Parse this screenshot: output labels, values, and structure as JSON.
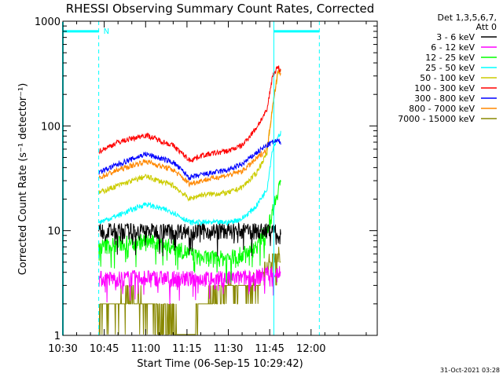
{
  "chart_data": {
    "type": "line",
    "title": "RHESSI Observing Summary Count Rates, Corrected",
    "xlabel": "Start Time (06-Sep-15 10:29:42)",
    "ylabel": "Corrected Count Rate (s⁻¹ detector⁻¹)",
    "y_scale": "log",
    "ylim": [
      1,
      1000
    ],
    "xlim_min": [
      630,
      744
    ],
    "x_ticks": [
      {
        "m": 630,
        "label": "10:30"
      },
      {
        "m": 645,
        "label": "10:45"
      },
      {
        "m": 660,
        "label": "11:00"
      },
      {
        "m": 675,
        "label": "11:15"
      },
      {
        "m": 690,
        "label": "11:30"
      },
      {
        "m": 705,
        "label": "11:45"
      },
      {
        "m": 720,
        "label": "12:00"
      }
    ],
    "y_ticks": [
      {
        "v": 1,
        "label": "1"
      },
      {
        "v": 10,
        "label": "10"
      },
      {
        "v": 100,
        "label": "100"
      },
      {
        "v": 1000,
        "label": "1000"
      }
    ],
    "legend_header": [
      "Det 1,3,5,6,7,",
      "Att 0"
    ],
    "legend_placement": "right",
    "night_marker": "N",
    "data_start_min": 643,
    "data_end_min": 723,
    "series": [
      {
        "name": "3 - 6 keV",
        "color": "#000000",
        "x": [
          643,
          650,
          660,
          670,
          680,
          690,
          700,
          705,
          709
        ],
        "y": [
          10,
          10,
          10,
          10,
          10,
          10,
          10,
          10,
          10
        ]
      },
      {
        "name": "6 - 12 keV",
        "color": "#ff00ff",
        "x": [
          643,
          650,
          660,
          670,
          680,
          690,
          700,
          705,
          709
        ],
        "y": [
          3.5,
          3.5,
          3.6,
          3.5,
          3.5,
          3.5,
          3.6,
          4,
          4
        ]
      },
      {
        "name": "12 - 25 keV",
        "color": "#00ff00",
        "x": [
          643,
          650,
          660,
          670,
          680,
          690,
          695,
          700,
          705,
          708,
          709
        ],
        "y": [
          7,
          7.5,
          8,
          7,
          5.5,
          5.5,
          6,
          7,
          12,
          25,
          30
        ]
      },
      {
        "name": "25 - 50 keV",
        "color": "#00ffff",
        "x": [
          643,
          650,
          660,
          670,
          676,
          680,
          690,
          695,
          700,
          704,
          706,
          708,
          709
        ],
        "y": [
          12,
          14,
          18,
          15,
          12,
          12,
          12,
          13,
          17,
          25,
          60,
          80,
          85
        ]
      },
      {
        "name": "50 - 100 keV",
        "color": "#cccc00",
        "x": [
          643,
          650,
          660,
          670,
          676,
          680,
          690,
          695,
          700,
          704,
          706,
          708,
          709
        ],
        "y": [
          23,
          27,
          33,
          27,
          20,
          22,
          23,
          26,
          35,
          55,
          150,
          320,
          330
        ]
      },
      {
        "name": "100 - 300 keV",
        "color": "#ff0000",
        "x": [
          643,
          650,
          660,
          670,
          676,
          680,
          690,
          695,
          700,
          704,
          706,
          708,
          709
        ],
        "y": [
          57,
          70,
          82,
          65,
          47,
          52,
          58,
          65,
          95,
          140,
          300,
          370,
          330
        ]
      },
      {
        "name": "300 - 800 keV",
        "color": "#0000ff",
        "x": [
          643,
          650,
          660,
          670,
          676,
          680,
          690,
          695,
          700,
          704,
          706,
          708,
          709
        ],
        "y": [
          36,
          43,
          54,
          45,
          32,
          34,
          38,
          43,
          55,
          65,
          70,
          72,
          70
        ]
      },
      {
        "name": "800 - 7000 keV",
        "color": "#ff8800",
        "x": [
          643,
          650,
          660,
          670,
          676,
          680,
          690,
          695,
          700,
          704,
          706,
          708,
          709
        ],
        "y": [
          32,
          38,
          46,
          38,
          28,
          30,
          34,
          37,
          48,
          60,
          150,
          340,
          320
        ]
      },
      {
        "name": "7000 - 15000 keV",
        "color": "#888800",
        "x": [
          643,
          648,
          655,
          660,
          665,
          670,
          676,
          680,
          690,
          700,
          705,
          709
        ],
        "y": [
          1.5,
          2,
          2.5,
          2,
          1.5,
          1.5,
          1,
          2,
          3,
          3,
          5,
          6
        ]
      }
    ]
  },
  "timestamp": "31-Oct-2021 03:28"
}
